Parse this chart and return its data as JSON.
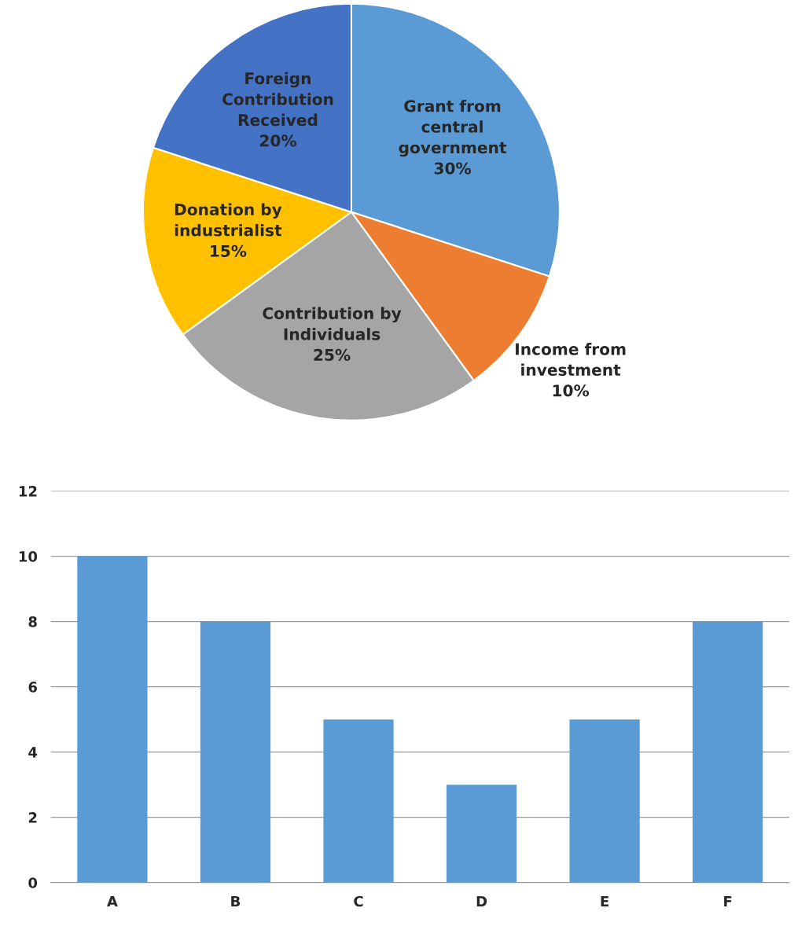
{
  "chart_data": [
    {
      "type": "pie",
      "categories": [
        "Grant from\ncentral\ngovernment",
        "Income from\ninvestment",
        "Contribution by\nIndividuals",
        "Donation by\nindustrialist",
        "Foreign\nContribution\nReceived"
      ],
      "values": [
        30,
        10,
        25,
        15,
        20
      ],
      "colors": [
        "#5b9bd5",
        "#ed7d31",
        "#a5a5a5",
        "#ffc000",
        "#4472c4"
      ],
      "value_labels": [
        "30%",
        "10%",
        "25%",
        "15%",
        "20%"
      ]
    },
    {
      "type": "bar",
      "categories": [
        "A",
        "B",
        "C",
        "D",
        "E",
        "F"
      ],
      "values": [
        10,
        8,
        5,
        3,
        5,
        8
      ],
      "color": "#5b9bd5",
      "ylim": [
        0,
        12
      ],
      "yticks": [
        0,
        2,
        4,
        6,
        8,
        10,
        12
      ],
      "grid": "y"
    }
  ]
}
